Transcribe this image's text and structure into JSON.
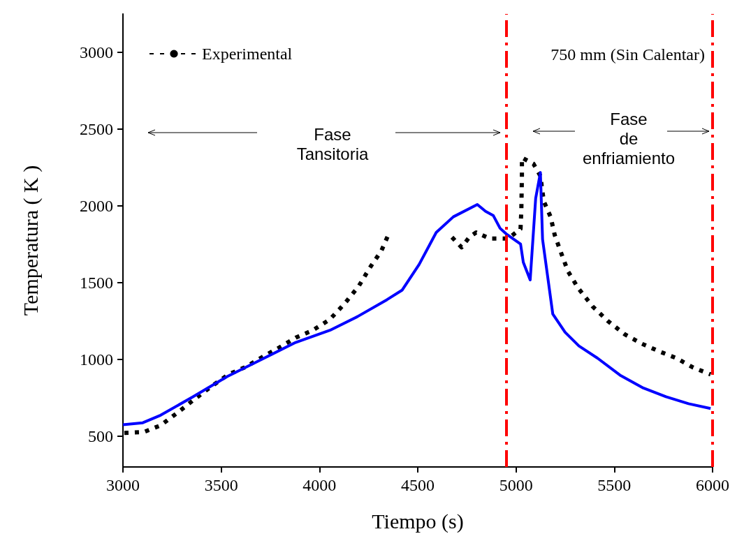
{
  "chart_data": {
    "type": "line",
    "xlabel": "Tiempo (s)",
    "ylabel": "Temperatura ( K )",
    "xlim": [
      3000,
      6000
    ],
    "xticks": [
      3000,
      3500,
      4000,
      4500,
      5000,
      5500,
      6000
    ],
    "ylim": [
      300,
      3250
    ],
    "yticks": [
      500,
      1000,
      1500,
      2000,
      2500,
      3000
    ],
    "legend": "top left",
    "grid": false,
    "series": [
      {
        "name": "Experimental",
        "color": "#000000",
        "line_style": "dotted",
        "x": [
          3007,
          3105,
          3192,
          3279,
          3366,
          3453,
          3537,
          3624,
          3712,
          3799,
          3879,
          3966,
          4053,
          4130,
          4200,
          4256,
          4315,
          4357,
          4500,
          4674,
          4723,
          4762,
          4797,
          4866,
          4960,
          5023,
          5027,
          5030,
          5030,
          5089,
          5124,
          5141,
          5176,
          5197,
          5229,
          5264,
          5316,
          5390,
          5466,
          5553,
          5641,
          5728,
          5815,
          5902,
          5990
        ],
        "values": [
          522,
          527,
          571,
          655,
          743,
          827,
          903,
          951,
          1018,
          1080,
          1142,
          1190,
          1261,
          1367,
          1478,
          1597,
          1708,
          1832,
          null,
          1796,
          1730,
          1796,
          1827,
          1788,
          1788,
          1850,
          1973,
          2195,
          2314,
          2274,
          2195,
          2031,
          1929,
          1810,
          1695,
          1575,
          1465,
          1345,
          1252,
          1164,
          1102,
          1053,
          1009,
          947,
          903
        ]
      },
      {
        "color": "#0000ff",
        "line_style": "solid",
        "x": [
          3000,
          3101,
          3192,
          3356,
          3530,
          3705,
          3879,
          4053,
          4193,
          4343,
          4420,
          4507,
          4594,
          4681,
          4803,
          4845,
          4884,
          4919,
          4950,
          5023,
          5037,
          5072,
          5100,
          5124,
          5135,
          5187,
          5250,
          5320,
          5414,
          5529,
          5648,
          5763,
          5878,
          5990
        ],
        "values": [
          575,
          588,
          637,
          757,
          889,
          1000,
          1111,
          1190,
          1279,
          1389,
          1451,
          1619,
          1827,
          1929,
          2009,
          1965,
          1938,
          1854,
          1818,
          1752,
          1633,
          1518,
          2049,
          2217,
          1783,
          1296,
          1177,
          1088,
          1009,
          898,
          814,
          757,
          712,
          681
        ]
      }
    ],
    "ref_lines": [
      {
        "axis": "x",
        "value": 4950,
        "color": "#ff0000",
        "line_style": "dashed"
      },
      {
        "axis": "x",
        "value": 6000,
        "color": "#ff0000",
        "line_style": "dashed"
      }
    ],
    "annotations": [
      "750 mm (Sin Calentar)",
      "Fase Tansitoria",
      "Fase de enfriamiento"
    ]
  }
}
